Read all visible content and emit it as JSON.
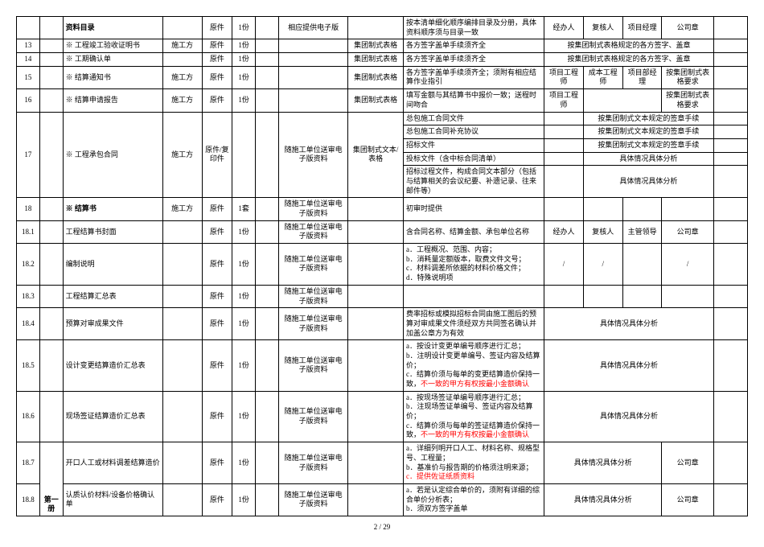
{
  "headerRow": {
    "c": "资料目录",
    "e": "原件",
    "f": "1份",
    "h": "相应提供电子版",
    "j": "按本清单细化顺序编排目录及分册，具体资料顺序须与目录一致",
    "k": "经办人",
    "l": "复核人",
    "m": "项目经理",
    "n": "公司章"
  },
  "row13": {
    "a": "13",
    "c": "※ 工程竣工验收证明书",
    "d": "施工方",
    "e": "原件",
    "f": "1份",
    "i": "集团制式表格",
    "j": "各方签字盖单手续须齐全",
    "right": "按集团制式表格规定的各方签字、盖章"
  },
  "row14": {
    "a": "14",
    "c": "※ 工期确认单",
    "e": "原件",
    "f": "1份",
    "i": "集团制式表格",
    "j": "各方签字盖单手续须齐全",
    "right": "按集团制式表格规定的各方签字、盖章"
  },
  "row15": {
    "a": "15",
    "c": "※ 结算通知书",
    "d": "施工方",
    "e": "原件",
    "f": "1份",
    "i": "集团制式表格",
    "j": "各方签字盖单手续须齐全；须附有相应结算作业指引",
    "k": "项目工程师",
    "l": "成本工程师",
    "m": "项目部经理",
    "n": "按集团制式表格要求"
  },
  "row16": {
    "a": "16",
    "c": "※ 结算申请报告",
    "d": "施工方",
    "e": "原件",
    "f": "1份",
    "i": "集团制式表格",
    "j": "填写金额与其结算书中报价一致；送程时间吻合",
    "k": "项目工程师",
    "n": "按集团制式表格要求"
  },
  "row17": {
    "a": "17",
    "c": "※ 工程承包合同",
    "d": "施工方",
    "e": "原件/复印件",
    "h": "随施工单位送审电子版资料",
    "i": "集团制式文本/表格",
    "sub": [
      {
        "j": "总包施工合同文件",
        "right": "按集团制式文本规定的签章手续"
      },
      {
        "j": "总包施工合同补充协议",
        "right": "按集团制式文本规定的签章手续"
      },
      {
        "j": "招标文件",
        "right": "按集团制式文本规定的签章手续"
      },
      {
        "j": "投标文件（含中标合同清单）",
        "right": "具体情况具体分析"
      },
      {
        "j": "招标过程文件，构成合同文本部分（包括与结算相关的会议纪要、补遗记录、往来邮件等）",
        "right": "具体情况具体分析"
      }
    ]
  },
  "row18": {
    "a": "18",
    "c": "※ 结算书",
    "d": "施工方",
    "e": "原件",
    "f": "1套",
    "h": "随施工单位送审电子版资料",
    "j": "初审时提供"
  },
  "row181": {
    "a": "18.1",
    "c": "工程结算书封面",
    "e": "原件",
    "f": "1份",
    "h": "随施工单位送审电子版资料",
    "j": "含合同名称、结算金额、承包单位名称",
    "k": "经办人",
    "l": "复核人",
    "m": "主管领导",
    "n": "公司章"
  },
  "row182": {
    "a": "18.2",
    "c": "编制说明",
    "e": "原件",
    "f": "1份",
    "h": "随施工单位送审电子版资料",
    "j_lines": [
      "a．工程概况、范围、内容；",
      "b．消耗量定额版本，取费文件文号；",
      "c．材料调差所依据的材料价格文件；",
      "d．特殊说明项"
    ],
    "k": "/",
    "l": "/",
    "n": "/"
  },
  "row183": {
    "a": "18.3",
    "c": "工程结算汇总表",
    "e": "原件",
    "f": "1份",
    "h": "随施工单位送审电子版资料"
  },
  "row184": {
    "a": "18.4",
    "c": "预算对审成果文件",
    "e": "原件",
    "f": "1份",
    "h": "随施工单位送审电子版资料",
    "j": "费率招标或模拟招标合同由施工图后的预算对审成果文件须经双方共同签名确认并加盖公章方为有效",
    "right": "具体情况具体分析"
  },
  "row185": {
    "a": "18.5",
    "c": "设计变更结算造价汇总表",
    "e": "原件",
    "f": "1份",
    "h": "随施工单位送审电子版资料",
    "j_lines": [
      "a．按设计变更单编号顺序进行汇总；",
      "b．注明设计变更单编号、签证内容及结算价；",
      "c．结算价须与每单的变更结算造价保持一致，"
    ],
    "j_red": "不一致的甲方有权按最小金额确认",
    "right": "具体情况具体分析"
  },
  "row186": {
    "a": "18.6",
    "c": "现场签证结算造价汇总表",
    "e": "原件",
    "f": "1份",
    "h": "随施工单位送审电子版资料",
    "j_lines": [
      "a．按现场签证单编号顺序进行汇总；",
      "b．注现场签证单编号、签证内容及结算价；",
      "c．结算价须与每单的签证结算造价保持一致，"
    ],
    "j_red": "不一致的甲方有权按最小金额确认",
    "right": "具体情况具体分析"
  },
  "row187": {
    "a": "18.7",
    "c": "开口人工或材料调差结算造价",
    "e": "原件",
    "f": "1份",
    "h": "随施工单位送审电子版资料",
    "j_lines": [
      "a．详细列明开口人工、材料名称、规格型号、工程量；",
      "b．基准价与报告期的价格须注明来源；"
    ],
    "j_red": "c．提供佐证纸质资料",
    "right": "具体情况具体分析",
    "n": "公司章"
  },
  "row188": {
    "a": "18.8",
    "c": "认质认价材料/设备价格确认单",
    "e": "原件",
    "f": "1份",
    "h": "随施工单位送审电子版资料",
    "j_lines": [
      "a．若是认定综合单价的，须附有详细的综合单价分析表；",
      "b．须双方签字盖单"
    ],
    "right": "具体情况具体分析",
    "n": "公司章"
  },
  "volLabel": "第一册",
  "footer": "2 / 29"
}
